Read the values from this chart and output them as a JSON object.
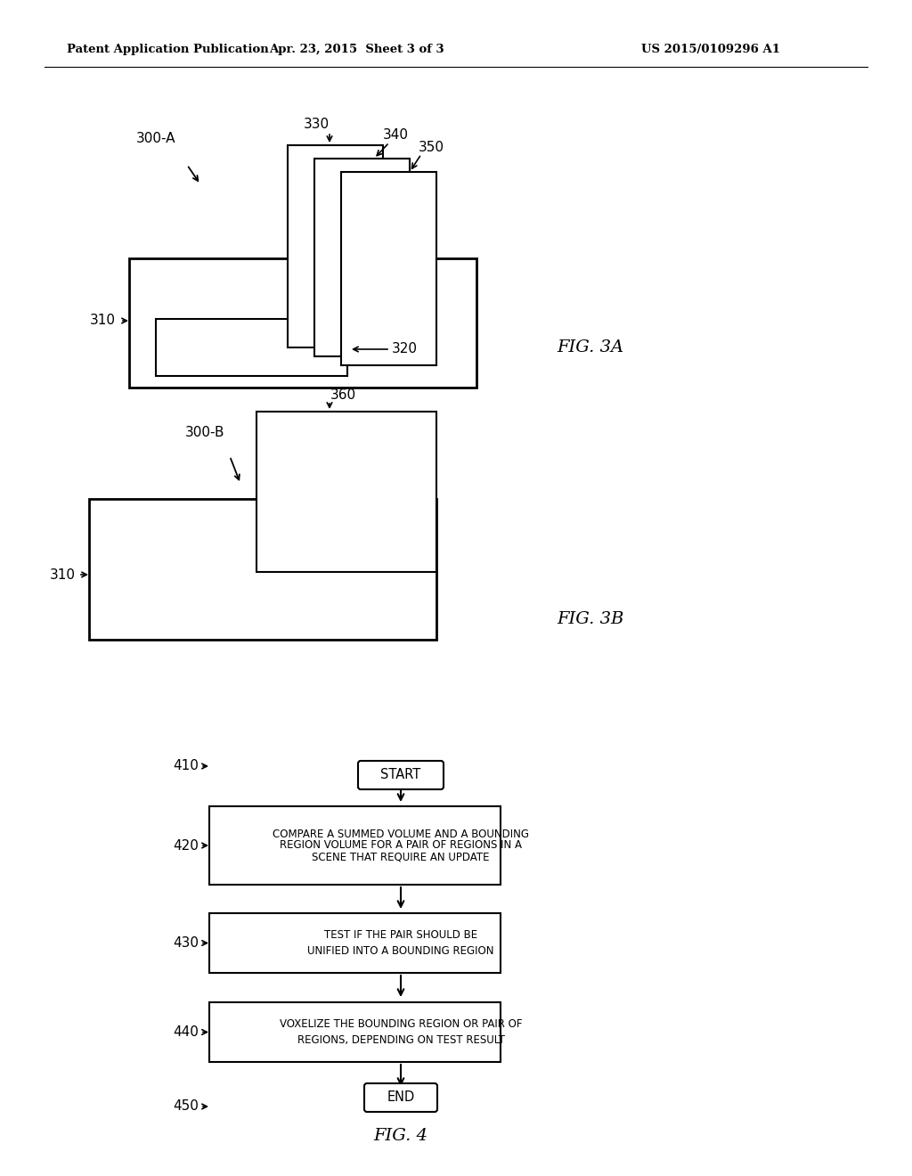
{
  "header_left": "Patent Application Publication",
  "header_mid": "Apr. 23, 2015  Sheet 3 of 3",
  "header_right": "US 2015/0109296 A1",
  "fig3a_label": "FIG. 3A",
  "fig3b_label": "FIG. 3B",
  "fig4_label": "FIG. 4",
  "background": "#ffffff",
  "line_color": "#000000"
}
